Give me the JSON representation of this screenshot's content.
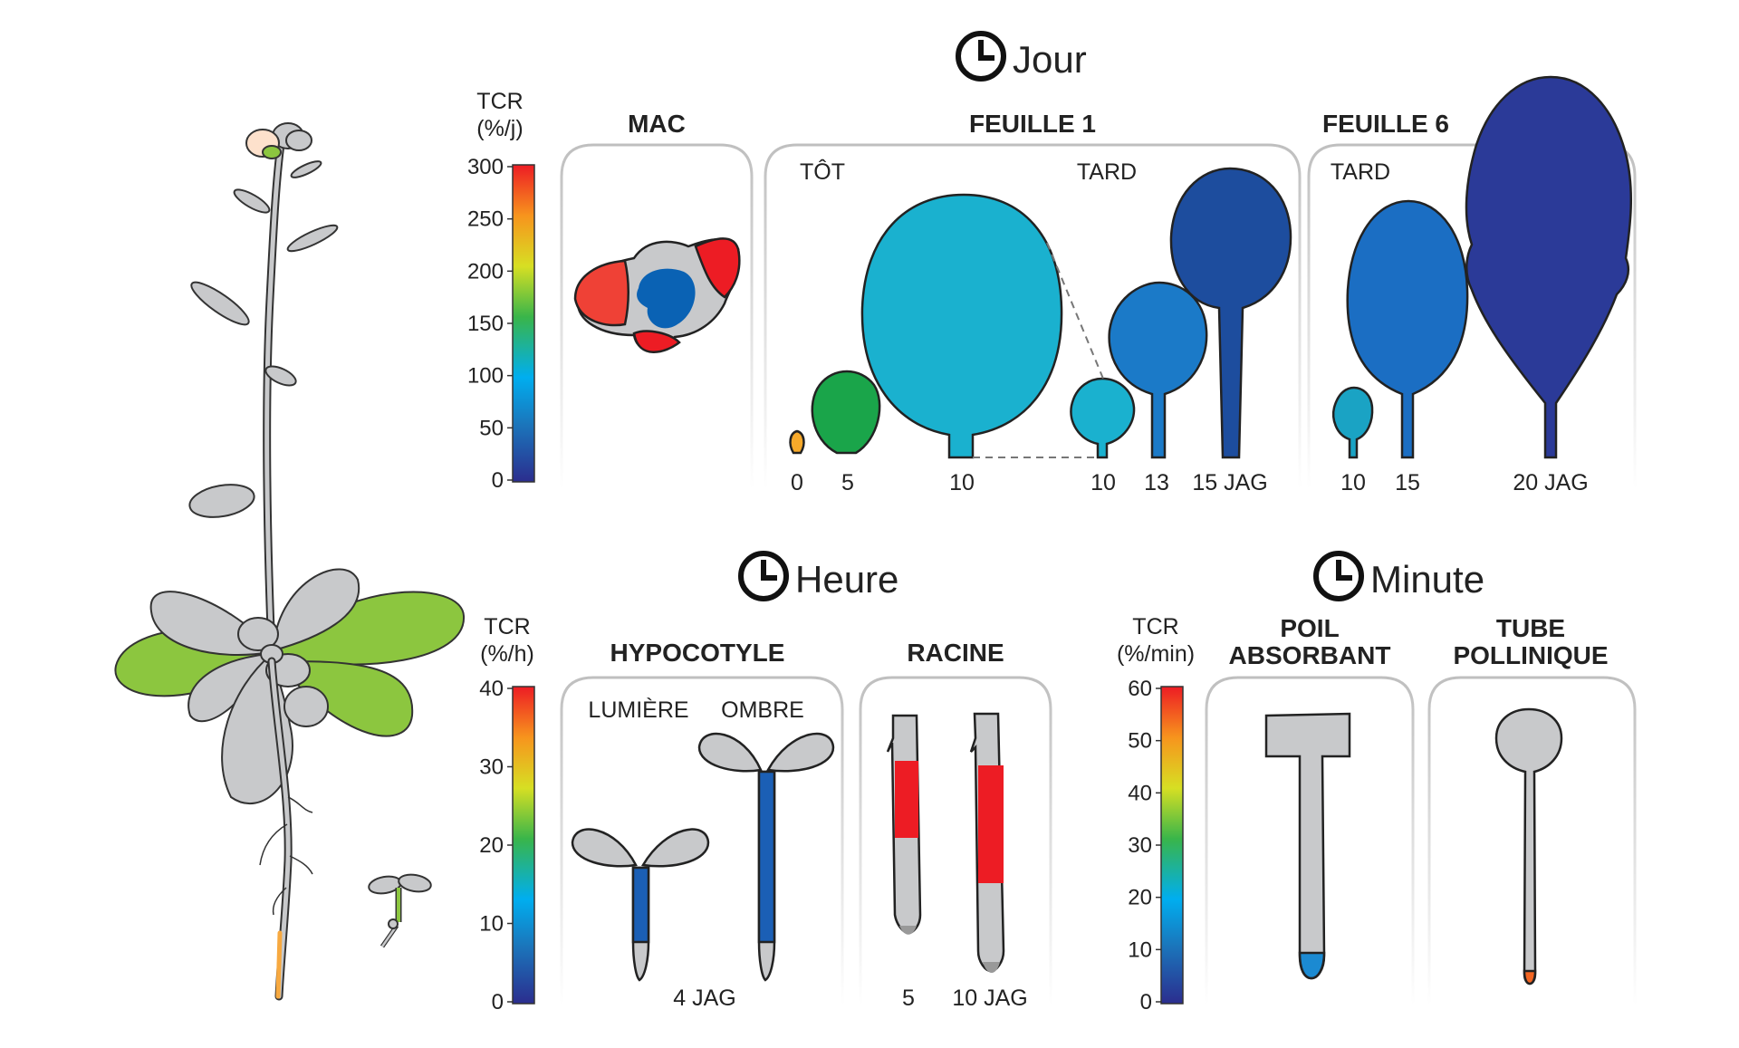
{
  "sections": {
    "day": "Jour",
    "hour": "Heure",
    "minute": "Minute"
  },
  "scales": {
    "day": {
      "unit_line1": "TCR",
      "unit_line2": "(%/j)",
      "ticks": [
        "300",
        "250",
        "200",
        "150",
        "100",
        "50",
        "0"
      ]
    },
    "hour": {
      "unit_line1": "TCR",
      "unit_line2": "(%/h)",
      "ticks": [
        "40",
        "30",
        "20",
        "10",
        "0"
      ]
    },
    "minute": {
      "unit_line1": "TCR",
      "unit_line2": "(%/min)",
      "ticks": [
        "60",
        "50",
        "40",
        "30",
        "20",
        "10",
        "0"
      ]
    }
  },
  "panels": {
    "mac": {
      "title": "MAC"
    },
    "leaf1": {
      "title": "FEUILLE 1",
      "early": "TÔT",
      "late": "TARD",
      "labels": [
        "0",
        "5",
        "10",
        "10",
        "13",
        "15 JAG"
      ]
    },
    "leaf6": {
      "title": "FEUILLE 6",
      "late": "TARD",
      "labels": [
        "10",
        "15",
        "20 JAG"
      ]
    },
    "hypocotyl": {
      "title": "HYPOCOTYLE",
      "light": "LUMIÈRE",
      "shade": "OMBRE",
      "age": "4 JAG"
    },
    "root": {
      "title": "RACINE",
      "age_a": "5",
      "age_b": "10 JAG"
    },
    "root_hair": {
      "title_line1": "POIL",
      "title_line2": "ABSORBANT"
    },
    "pollen_tube": {
      "title_line1": "TUBE",
      "title_line2": "POLLINIQUE"
    }
  },
  "colors": {
    "plant_gray": "#c8c9cb",
    "leaf_green": "#8cc63f",
    "scale_stops": [
      "#2b2d8e",
      "#1b75bb",
      "#00aeef",
      "#39b54a",
      "#d7df23",
      "#f7941d",
      "#ed1c24"
    ]
  }
}
